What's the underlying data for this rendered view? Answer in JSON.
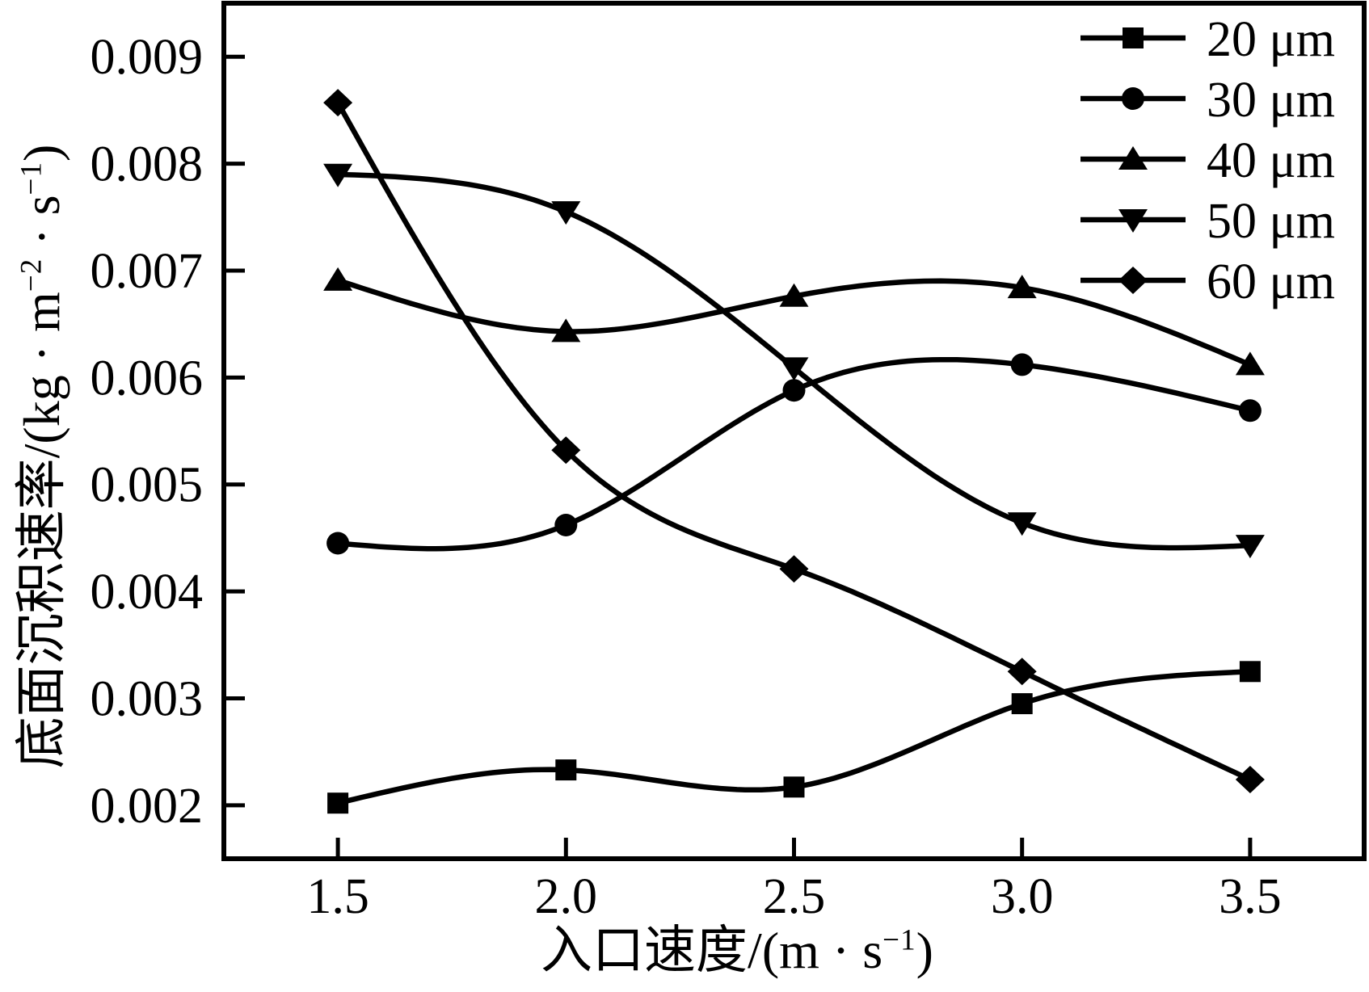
{
  "figure": {
    "background_color": "#ffffff",
    "ink_color": "#000000"
  },
  "chart_data": {
    "type": "line",
    "line_style": "smooth-spline",
    "grid": false,
    "legend_position": "top-right-inside",
    "x": [
      1.5,
      2.0,
      2.5,
      3.0,
      3.5
    ],
    "x_ticks": [
      "1.5",
      "2.0",
      "2.5",
      "3.0",
      "3.5"
    ],
    "y_ticks": [
      "0.002",
      "0.003",
      "0.004",
      "0.005",
      "0.006",
      "0.007",
      "0.008",
      "0.009"
    ],
    "y_tick_values": [
      0.002,
      0.003,
      0.004,
      0.005,
      0.006,
      0.007,
      0.008,
      0.009
    ],
    "xlim": [
      1.25,
      3.75
    ],
    "ylim": [
      0.0015,
      0.0095
    ],
    "series": [
      {
        "name": "20 μm",
        "marker": "square",
        "values": [
          0.00202,
          0.00233,
          0.00217,
          0.00295,
          0.00325
        ]
      },
      {
        "name": "30 μm",
        "marker": "circle",
        "values": [
          0.00445,
          0.00462,
          0.00588,
          0.00612,
          0.00569
        ]
      },
      {
        "name": "40 μm",
        "marker": "triangle-up",
        "values": [
          0.00691,
          0.00643,
          0.00676,
          0.00684,
          0.00612
        ]
      },
      {
        "name": "50 μm",
        "marker": "triangle-down",
        "values": [
          0.0079,
          0.00755,
          0.00609,
          0.00464,
          0.00443
        ]
      },
      {
        "name": "60 μm",
        "marker": "diamond",
        "values": [
          0.00857,
          0.00532,
          0.00421,
          0.00325,
          0.00224
        ]
      }
    ],
    "xlabel_parts": [
      "入口速度/(m · s",
      "−1",
      ")"
    ],
    "ylabel_parts": [
      "底面沉积速率/(kg · m",
      "−2",
      " · s",
      "−1",
      ")"
    ]
  }
}
